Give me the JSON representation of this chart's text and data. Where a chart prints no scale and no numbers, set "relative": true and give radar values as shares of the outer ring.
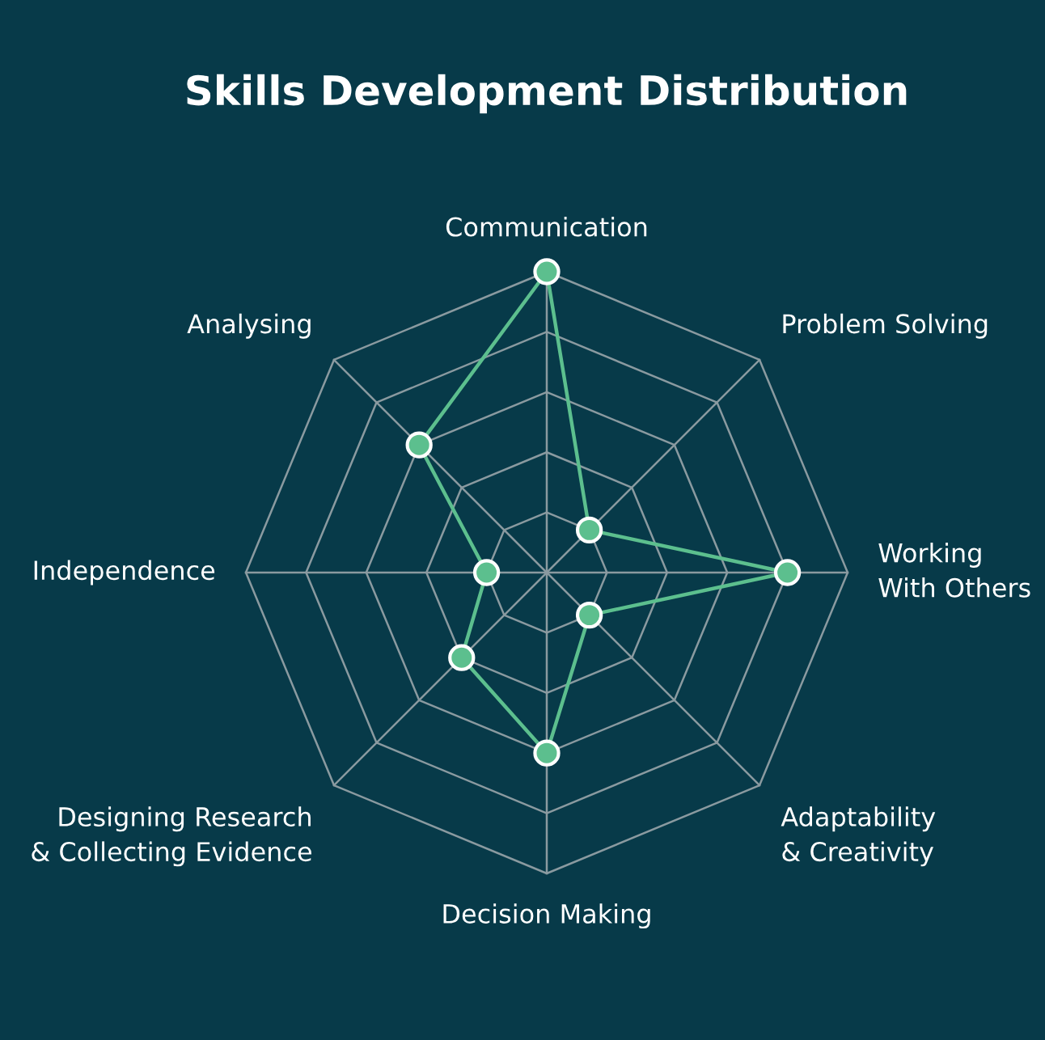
{
  "chart_data": {
    "type": "radar",
    "title": "Skills Development Distribution",
    "categories": [
      "Communication",
      "Problem Solving",
      "Working\nWith Others",
      "Adaptability\n& Creativity",
      "Decision Making",
      "Designing Research\n& Collecting Evidence",
      "Independence",
      "Analysing"
    ],
    "relative": true,
    "grid": true,
    "marker": "circle",
    "series": [
      {
        "color": "#5cbf8e",
        "values": [
          1.0,
          0.2,
          0.8,
          0.2,
          0.6,
          0.4,
          0.2,
          0.6
        ]
      }
    ]
  }
}
